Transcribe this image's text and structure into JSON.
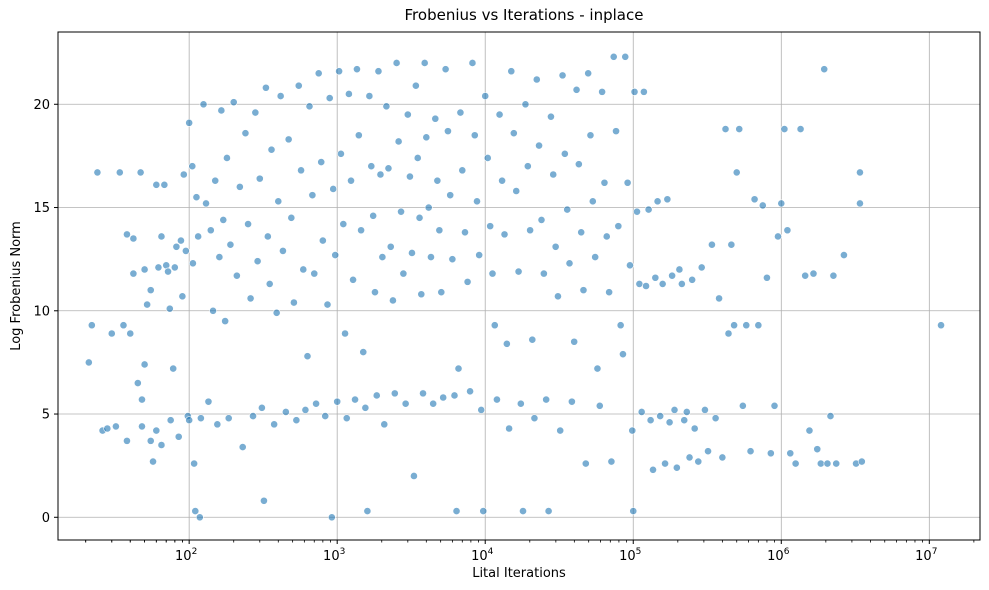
{
  "chart_data": {
    "type": "scatter",
    "title": "Frobenius vs Iterations - inplace",
    "xlabel": "Lital Iterations",
    "ylabel": "Log Frobenius Norm",
    "xscale": "log",
    "xlim": [
      13,
      22000000
    ],
    "ylim": [
      -1.1,
      23.5
    ],
    "xticks": [
      {
        "value": 100,
        "base": "10",
        "exp": "2"
      },
      {
        "value": 1000,
        "base": "10",
        "exp": "3"
      },
      {
        "value": 10000,
        "base": "10",
        "exp": "4"
      },
      {
        "value": 100000,
        "base": "10",
        "exp": "5"
      },
      {
        "value": 1000000,
        "base": "10",
        "exp": "6"
      },
      {
        "value": 10000000,
        "base": "10",
        "exp": "7"
      }
    ],
    "yticks": [
      {
        "value": 0,
        "label": "0"
      },
      {
        "value": 5,
        "label": "5"
      },
      {
        "value": 10,
        "label": "10"
      },
      {
        "value": 15,
        "label": "15"
      },
      {
        "value": 20,
        "label": "20"
      }
    ],
    "grid": true,
    "color": "#1f77b4",
    "points": [
      [
        21,
        7.5
      ],
      [
        22,
        9.3
      ],
      [
        24,
        16.7
      ],
      [
        26,
        4.2
      ],
      [
        28,
        4.3
      ],
      [
        30,
        8.9
      ],
      [
        32,
        4.4
      ],
      [
        34,
        16.7
      ],
      [
        36,
        9.3
      ],
      [
        38,
        13.7
      ],
      [
        38,
        3.7
      ],
      [
        40,
        8.9
      ],
      [
        42,
        13.5
      ],
      [
        42,
        11.8
      ],
      [
        45,
        6.5
      ],
      [
        47,
        16.7
      ],
      [
        48,
        5.7
      ],
      [
        48,
        4.4
      ],
      [
        50,
        7.4
      ],
      [
        50,
        12
      ],
      [
        52,
        10.3
      ],
      [
        55,
        11
      ],
      [
        55,
        3.7
      ],
      [
        57,
        2.7
      ],
      [
        60,
        16.1
      ],
      [
        60,
        4.2
      ],
      [
        62,
        12.1
      ],
      [
        65,
        13.6
      ],
      [
        65,
        3.5
      ],
      [
        68,
        16.1
      ],
      [
        70,
        12.2
      ],
      [
        72,
        11.9
      ],
      [
        74,
        10.1
      ],
      [
        75,
        4.7
      ],
      [
        78,
        7.2
      ],
      [
        80,
        12.1
      ],
      [
        82,
        13.1
      ],
      [
        85,
        3.9
      ],
      [
        88,
        13.4
      ],
      [
        90,
        10.7
      ],
      [
        92,
        16.6
      ],
      [
        95,
        12.9
      ],
      [
        98,
        4.9
      ],
      [
        100,
        19.1
      ],
      [
        100,
        4.7
      ],
      [
        105,
        17
      ],
      [
        106,
        12.3
      ],
      [
        108,
        2.6
      ],
      [
        110,
        0.3
      ],
      [
        112,
        15.5
      ],
      [
        115,
        13.6
      ],
      [
        118,
        0
      ],
      [
        120,
        4.8
      ],
      [
        125,
        20
      ],
      [
        130,
        15.2
      ],
      [
        135,
        5.6
      ],
      [
        140,
        13.9
      ],
      [
        145,
        10
      ],
      [
        150,
        16.3
      ],
      [
        155,
        4.5
      ],
      [
        160,
        12.6
      ],
      [
        165,
        19.7
      ],
      [
        170,
        14.4
      ],
      [
        175,
        9.5
      ],
      [
        180,
        17.4
      ],
      [
        185,
        4.8
      ],
      [
        190,
        13.2
      ],
      [
        200,
        20.1
      ],
      [
        210,
        11.7
      ],
      [
        220,
        16
      ],
      [
        230,
        3.4
      ],
      [
        240,
        18.6
      ],
      [
        250,
        14.2
      ],
      [
        260,
        10.6
      ],
      [
        270,
        4.9
      ],
      [
        280,
        19.6
      ],
      [
        290,
        12.4
      ],
      [
        300,
        16.4
      ],
      [
        310,
        5.3
      ],
      [
        320,
        0.8
      ],
      [
        330,
        20.8
      ],
      [
        340,
        13.6
      ],
      [
        350,
        11.3
      ],
      [
        360,
        17.8
      ],
      [
        375,
        4.5
      ],
      [
        390,
        9.9
      ],
      [
        400,
        15.3
      ],
      [
        415,
        20.4
      ],
      [
        430,
        12.9
      ],
      [
        450,
        5.1
      ],
      [
        470,
        18.3
      ],
      [
        490,
        14.5
      ],
      [
        510,
        10.4
      ],
      [
        530,
        4.7
      ],
      [
        550,
        20.9
      ],
      [
        570,
        16.8
      ],
      [
        590,
        12
      ],
      [
        610,
        5.2
      ],
      [
        630,
        7.8
      ],
      [
        650,
        19.9
      ],
      [
        680,
        15.6
      ],
      [
        700,
        11.8
      ],
      [
        720,
        5.5
      ],
      [
        750,
        21.5
      ],
      [
        780,
        17.2
      ],
      [
        800,
        13.4
      ],
      [
        830,
        4.9
      ],
      [
        860,
        10.3
      ],
      [
        890,
        20.3
      ],
      [
        920,
        0
      ],
      [
        940,
        15.9
      ],
      [
        970,
        12.7
      ],
      [
        1000,
        5.6
      ],
      [
        1030,
        21.6
      ],
      [
        1060,
        17.6
      ],
      [
        1100,
        14.2
      ],
      [
        1130,
        8.9
      ],
      [
        1160,
        4.8
      ],
      [
        1200,
        20.5
      ],
      [
        1240,
        16.3
      ],
      [
        1280,
        11.5
      ],
      [
        1320,
        5.7
      ],
      [
        1360,
        21.7
      ],
      [
        1400,
        18.5
      ],
      [
        1450,
        13.9
      ],
      [
        1500,
        8
      ],
      [
        1550,
        5.3
      ],
      [
        1600,
        0.3
      ],
      [
        1650,
        20.4
      ],
      [
        1700,
        17
      ],
      [
        1750,
        14.6
      ],
      [
        1800,
        10.9
      ],
      [
        1850,
        5.9
      ],
      [
        1900,
        21.6
      ],
      [
        1960,
        16.6
      ],
      [
        2020,
        12.6
      ],
      [
        2080,
        4.5
      ],
      [
        2150,
        19.9
      ],
      [
        2220,
        16.9
      ],
      [
        2300,
        13.1
      ],
      [
        2380,
        10.5
      ],
      [
        2450,
        6
      ],
      [
        2520,
        22
      ],
      [
        2600,
        18.2
      ],
      [
        2700,
        14.8
      ],
      [
        2800,
        11.8
      ],
      [
        2900,
        5.5
      ],
      [
        3000,
        19.5
      ],
      [
        3100,
        16.5
      ],
      [
        3200,
        12.8
      ],
      [
        3300,
        2
      ],
      [
        3400,
        20.9
      ],
      [
        3500,
        17.4
      ],
      [
        3600,
        14.5
      ],
      [
        3700,
        10.8
      ],
      [
        3800,
        6
      ],
      [
        3900,
        22
      ],
      [
        4000,
        18.4
      ],
      [
        4150,
        15
      ],
      [
        4300,
        12.6
      ],
      [
        4450,
        5.5
      ],
      [
        4600,
        19.3
      ],
      [
        4750,
        16.3
      ],
      [
        4900,
        13.9
      ],
      [
        5050,
        10.9
      ],
      [
        5200,
        5.8
      ],
      [
        5400,
        21.7
      ],
      [
        5600,
        18.7
      ],
      [
        5800,
        15.6
      ],
      [
        6000,
        12.5
      ],
      [
        6200,
        5.9
      ],
      [
        6400,
        0.3
      ],
      [
        6600,
        7.2
      ],
      [
        6800,
        19.6
      ],
      [
        7000,
        16.8
      ],
      [
        7300,
        13.8
      ],
      [
        7600,
        11.4
      ],
      [
        7900,
        6.1
      ],
      [
        8200,
        22
      ],
      [
        8500,
        18.5
      ],
      [
        8800,
        15.3
      ],
      [
        9100,
        12.7
      ],
      [
        9400,
        5.2
      ],
      [
        9700,
        0.3
      ],
      [
        10000,
        20.4
      ],
      [
        10400,
        17.4
      ],
      [
        10800,
        14.1
      ],
      [
        11200,
        11.8
      ],
      [
        11600,
        9.3
      ],
      [
        12000,
        5.7
      ],
      [
        12500,
        19.5
      ],
      [
        13000,
        16.3
      ],
      [
        13500,
        13.7
      ],
      [
        14000,
        8.4
      ],
      [
        14500,
        4.3
      ],
      [
        15000,
        21.6
      ],
      [
        15600,
        18.6
      ],
      [
        16200,
        15.8
      ],
      [
        16800,
        11.9
      ],
      [
        17400,
        5.5
      ],
      [
        18000,
        0.3
      ],
      [
        18700,
        20
      ],
      [
        19400,
        17
      ],
      [
        20100,
        13.9
      ],
      [
        20800,
        8.6
      ],
      [
        21500,
        4.8
      ],
      [
        22300,
        21.2
      ],
      [
        23100,
        18
      ],
      [
        24000,
        14.4
      ],
      [
        24900,
        11.8
      ],
      [
        25800,
        5.7
      ],
      [
        26800,
        0.3
      ],
      [
        27800,
        19.4
      ],
      [
        28800,
        16.6
      ],
      [
        29900,
        13.1
      ],
      [
        31000,
        10.7
      ],
      [
        32100,
        4.2
      ],
      [
        33300,
        21.4
      ],
      [
        34500,
        17.6
      ],
      [
        35800,
        14.9
      ],
      [
        37100,
        12.3
      ],
      [
        38500,
        5.6
      ],
      [
        39900,
        8.5
      ],
      [
        41400,
        20.7
      ],
      [
        42900,
        17.1
      ],
      [
        44500,
        13.8
      ],
      [
        46100,
        11
      ],
      [
        47800,
        2.6
      ],
      [
        49600,
        21.5
      ],
      [
        51400,
        18.5
      ],
      [
        53300,
        15.3
      ],
      [
        55300,
        12.6
      ],
      [
        57300,
        7.2
      ],
      [
        59400,
        5.4
      ],
      [
        61600,
        20.6
      ],
      [
        63900,
        16.2
      ],
      [
        66200,
        13.6
      ],
      [
        68700,
        10.9
      ],
      [
        71200,
        2.7
      ],
      [
        73800,
        22.3
      ],
      [
        76500,
        18.7
      ],
      [
        79300,
        14.1
      ],
      [
        82200,
        9.3
      ],
      [
        85200,
        7.9
      ],
      [
        88300,
        22.3
      ],
      [
        91600,
        16.2
      ],
      [
        95000,
        12.2
      ],
      [
        98500,
        4.2
      ],
      [
        100000,
        0.3
      ],
      [
        102000,
        20.6
      ],
      [
        106000,
        14.8
      ],
      [
        110000,
        11.3
      ],
      [
        114000,
        5.1
      ],
      [
        118000,
        20.6
      ],
      [
        122000,
        11.2
      ],
      [
        127000,
        14.9
      ],
      [
        131000,
        4.7
      ],
      [
        136000,
        2.3
      ],
      [
        141000,
        11.6
      ],
      [
        146000,
        15.3
      ],
      [
        152000,
        4.9
      ],
      [
        158000,
        11.3
      ],
      [
        164000,
        2.6
      ],
      [
        170000,
        15.4
      ],
      [
        176000,
        4.6
      ],
      [
        183000,
        11.7
      ],
      [
        190000,
        5.2
      ],
      [
        197000,
        2.4
      ],
      [
        205000,
        12
      ],
      [
        213000,
        11.3
      ],
      [
        221000,
        4.7
      ],
      [
        230000,
        5.1
      ],
      [
        240000,
        2.9
      ],
      [
        250000,
        11.5
      ],
      [
        260000,
        4.3
      ],
      [
        275000,
        2.7
      ],
      [
        290000,
        12.1
      ],
      [
        305000,
        5.2
      ],
      [
        320000,
        3.2
      ],
      [
        340000,
        13.2
      ],
      [
        360000,
        4.8
      ],
      [
        380000,
        10.6
      ],
      [
        400000,
        2.9
      ],
      [
        420000,
        18.8
      ],
      [
        440000,
        8.9
      ],
      [
        460000,
        13.2
      ],
      [
        480000,
        9.3
      ],
      [
        500000,
        16.7
      ],
      [
        520000,
        18.8
      ],
      [
        550000,
        5.4
      ],
      [
        580000,
        9.3
      ],
      [
        620000,
        3.2
      ],
      [
        660000,
        15.4
      ],
      [
        700000,
        9.3
      ],
      [
        750000,
        15.1
      ],
      [
        800000,
        11.6
      ],
      [
        850000,
        3.1
      ],
      [
        900000,
        5.4
      ],
      [
        950000,
        13.6
      ],
      [
        1000000,
        15.2
      ],
      [
        1050000,
        18.8
      ],
      [
        1100000,
        13.9
      ],
      [
        1150000,
        3.1
      ],
      [
        1250000,
        2.6
      ],
      [
        1350000,
        18.8
      ],
      [
        1450000,
        11.7
      ],
      [
        1550000,
        4.2
      ],
      [
        1650000,
        11.8
      ],
      [
        1750000,
        3.3
      ],
      [
        1850000,
        2.6
      ],
      [
        1950000,
        21.7
      ],
      [
        2050000,
        2.6
      ],
      [
        2150000,
        4.9
      ],
      [
        2250000,
        11.7
      ],
      [
        2350000,
        2.6
      ],
      [
        2650000,
        12.7
      ],
      [
        3200000,
        2.6
      ],
      [
        3400000,
        16.7
      ],
      [
        3400000,
        15.2
      ],
      [
        3500000,
        2.7
      ],
      [
        12000000,
        9.3
      ]
    ]
  }
}
